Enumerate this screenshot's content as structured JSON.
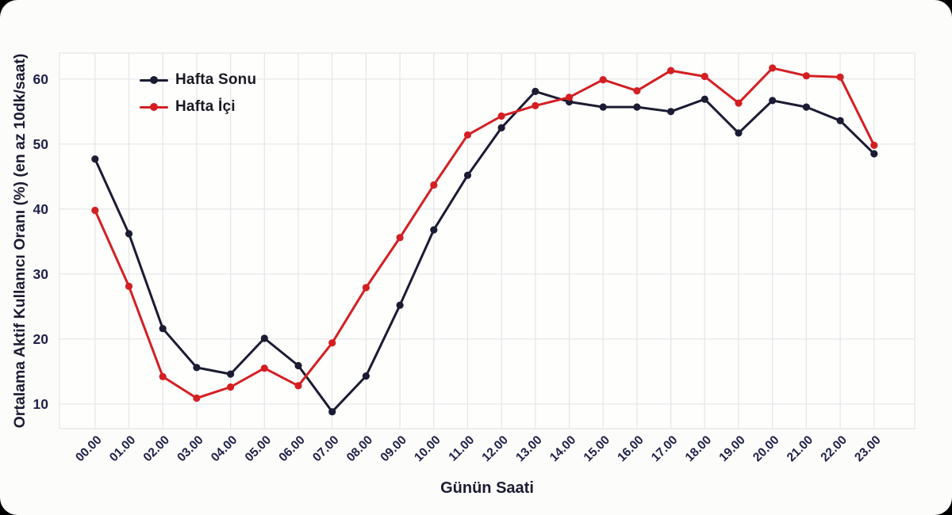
{
  "chart_data": {
    "type": "line",
    "title": "",
    "xlabel": "Günün Saati",
    "ylabel": "Ortalama Aktif Kullanıcı Oranı (%) (en az 10dk/saat)",
    "categories": [
      "00.00",
      "01.00",
      "02.00",
      "03.00",
      "04.00",
      "05.00",
      "06.00",
      "07.00",
      "08.00",
      "09.00",
      "10.00",
      "11.00",
      "12.00",
      "13.00",
      "14.00",
      "15.00",
      "16.00",
      "17.00",
      "18.00",
      "19.00",
      "20.00",
      "21.00",
      "22.00",
      "23.00"
    ],
    "y_ticks": [
      10,
      20,
      30,
      40,
      50,
      60
    ],
    "ylim": [
      6.2,
      64.0
    ],
    "xlim": [
      -1.05,
      24.2
    ],
    "grid": true,
    "legend_position": "top-left",
    "series": [
      {
        "name": "Hafta Sonu",
        "color": "#1b1b33",
        "values": [
          47.7,
          36.2,
          21.6,
          15.6,
          14.6,
          20.1,
          15.9,
          8.8,
          14.3,
          25.2,
          36.8,
          45.2,
          52.5,
          58.1,
          56.5,
          55.7,
          55.7,
          55.0,
          56.9,
          51.7,
          56.7,
          55.7,
          53.6,
          48.5
        ]
      },
      {
        "name": "Hafta İçi",
        "color": "#d41f22",
        "values": [
          39.8,
          28.1,
          14.2,
          10.9,
          12.6,
          15.5,
          12.8,
          19.4,
          27.9,
          35.6,
          43.7,
          51.4,
          54.3,
          55.9,
          57.2,
          59.9,
          58.2,
          61.3,
          60.4,
          56.3,
          61.7,
          60.5,
          60.3,
          49.8
        ]
      }
    ]
  },
  "style_colors": {
    "grid": "#e5e5e8",
    "plot_background": "#fefefd",
    "card_background": "#fcfcfa",
    "page_background": "#000000",
    "tick_text": "#20204a",
    "axis_title_text": "#1b1b33"
  }
}
